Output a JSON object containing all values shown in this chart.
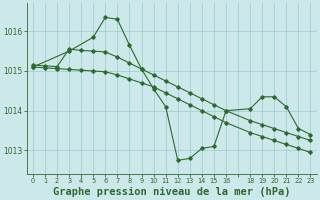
{
  "background_color": "#cce8ea",
  "grid_color": "#99cccc",
  "line_color": "#2d6a2d",
  "title": "Graphe pression niveau de la mer (hPa)",
  "title_fontsize": 7.5,
  "ylim": [
    1012.4,
    1016.7
  ],
  "xlim": [
    -0.5,
    23.5
  ],
  "yticks": [
    1013,
    1014,
    1015,
    1016
  ],
  "xtick_labels": [
    "0",
    "1",
    "2",
    "3",
    "4",
    "5",
    "6",
    "7",
    "8",
    "9",
    "10",
    "11",
    "12",
    "13",
    "14",
    "15",
    "16",
    "",
    "18",
    "19",
    "20",
    "21",
    "22",
    "23"
  ],
  "xtick_positions": [
    0,
    1,
    2,
    3,
    4,
    5,
    6,
    7,
    8,
    9,
    10,
    11,
    12,
    13,
    14,
    15,
    16,
    17,
    18,
    19,
    20,
    21,
    22,
    23
  ],
  "series1_x": [
    0,
    1,
    2,
    3,
    4,
    5,
    6,
    7,
    8,
    9,
    10,
    11,
    12,
    13,
    14,
    15,
    16,
    18,
    19,
    20,
    21,
    22,
    23
  ],
  "series1_y": [
    1015.1,
    1015.08,
    1015.06,
    1015.04,
    1015.02,
    1015.0,
    1014.98,
    1014.9,
    1014.8,
    1014.7,
    1014.6,
    1014.45,
    1014.3,
    1014.15,
    1014.0,
    1013.85,
    1013.7,
    1013.45,
    1013.35,
    1013.25,
    1013.15,
    1013.05,
    1012.95
  ],
  "series2_x": [
    0,
    1,
    2,
    3,
    4,
    5,
    6,
    7,
    8,
    9,
    10,
    11,
    12,
    13,
    14,
    15,
    16,
    18,
    19,
    20,
    21,
    22,
    23
  ],
  "series2_y": [
    1015.15,
    1015.13,
    1015.11,
    1015.55,
    1015.52,
    1015.5,
    1015.48,
    1015.35,
    1015.2,
    1015.05,
    1014.9,
    1014.75,
    1014.6,
    1014.45,
    1014.3,
    1014.15,
    1014.0,
    1013.75,
    1013.65,
    1013.55,
    1013.45,
    1013.35,
    1013.25
  ],
  "series3_x": [
    0,
    3,
    5,
    6,
    7,
    8,
    9,
    10,
    11,
    12,
    13,
    14,
    15,
    16,
    18,
    19,
    20,
    21,
    22,
    23
  ],
  "series3_y": [
    1015.1,
    1015.5,
    1015.85,
    1016.35,
    1016.3,
    1015.65,
    1015.05,
    1014.55,
    1014.1,
    1012.75,
    1012.8,
    1013.05,
    1013.1,
    1014.0,
    1014.05,
    1014.35,
    1014.35,
    1014.1,
    1013.55,
    1013.4
  ]
}
